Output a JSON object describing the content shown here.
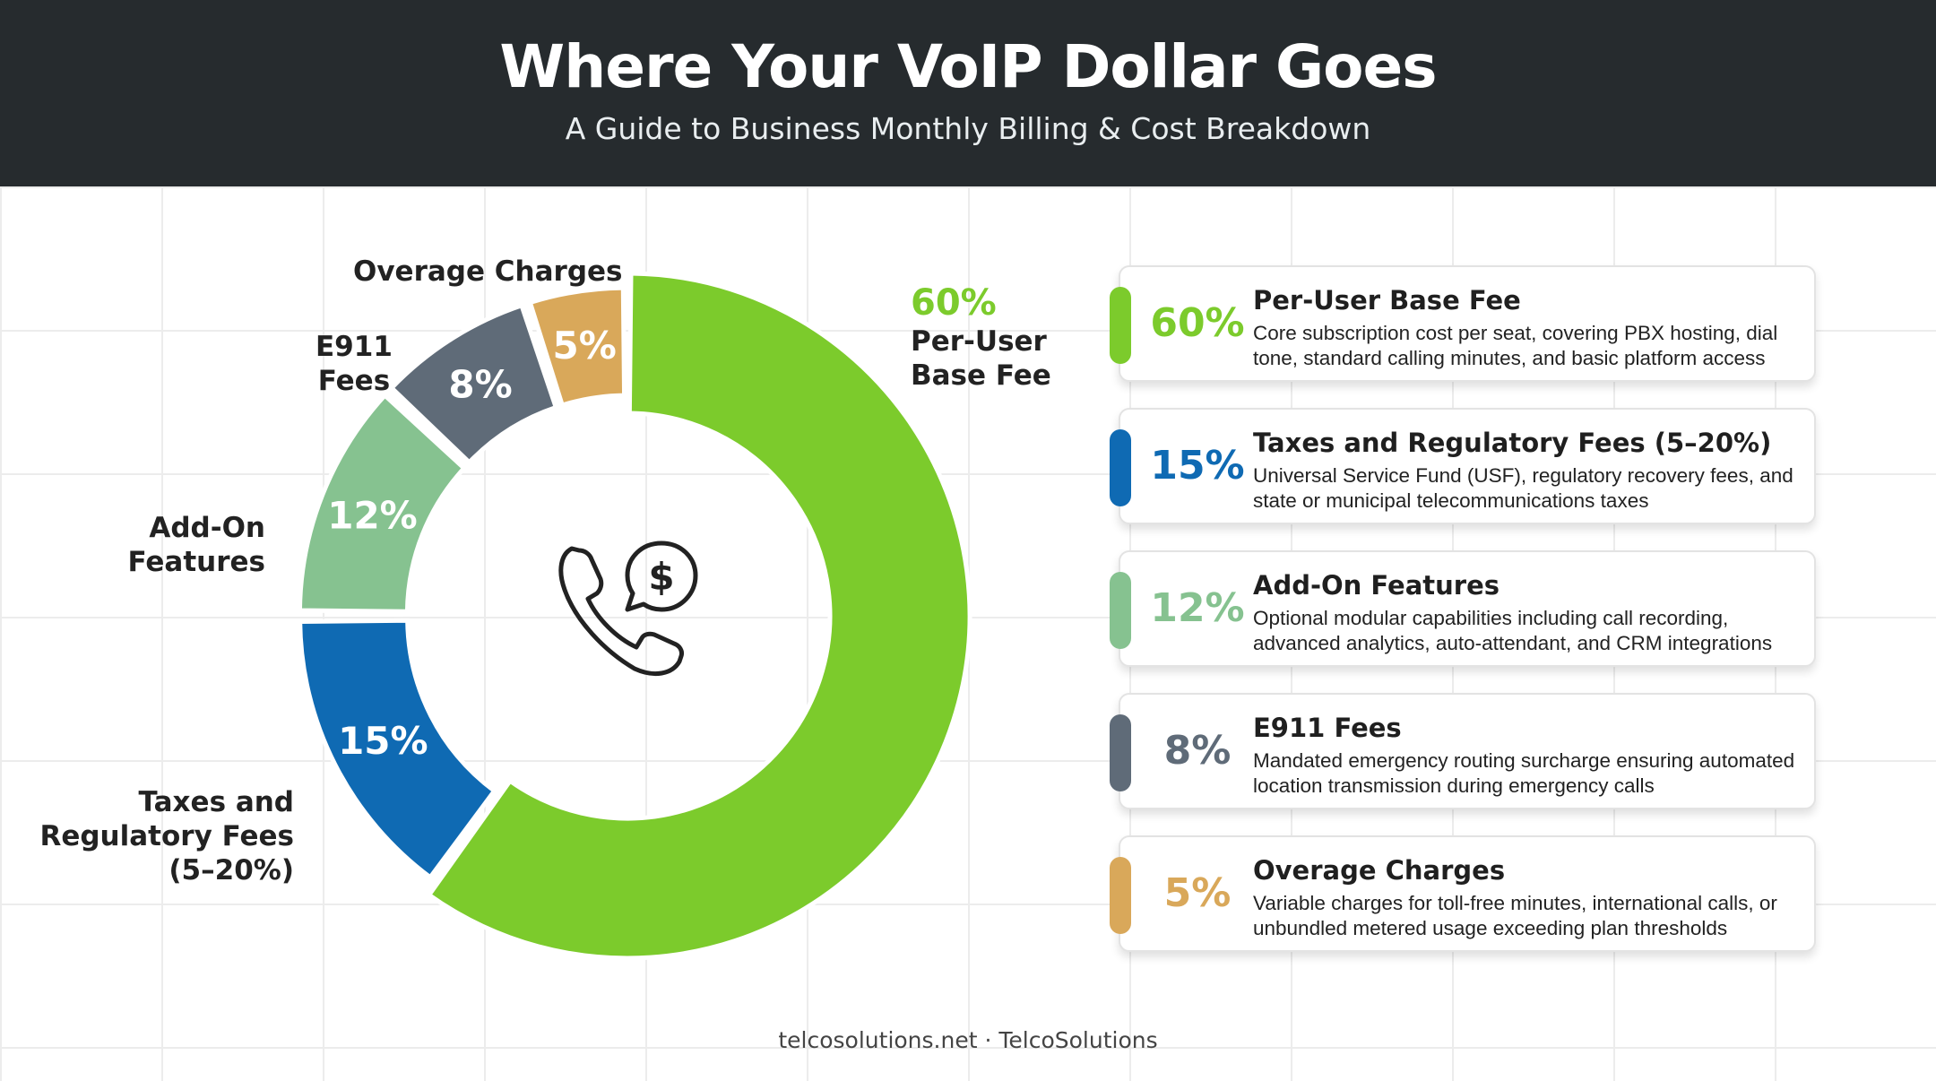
{
  "header": {
    "title": "Where Your VoIP Dollar Goes",
    "subtitle": "A Guide to Business Monthly Billing & Cost Breakdown"
  },
  "chart_data": {
    "type": "pie",
    "variant": "donut",
    "categories": [
      "Per-User Base Fee",
      "Taxes and Regulatory Fees (5–20%)",
      "Add-On Features",
      "E911 Fees",
      "Overage Charges"
    ],
    "values": [
      60,
      15,
      12,
      8,
      5
    ],
    "value_labels": [
      "60%",
      "15%",
      "12%",
      "8%",
      "5%"
    ],
    "colors": [
      "#7ccb2c",
      "#0f6ab3",
      "#86c290",
      "#5f6b78",
      "#d9a85a"
    ],
    "start": "top, clockwise"
  },
  "labels": {
    "overage": "Overage Charges",
    "e911_line1": "E911",
    "e911_line2": "Fees",
    "addon_line1": "Add-On",
    "addon_line2": "Features",
    "taxes_line1": "Taxes and",
    "taxes_line2": "Regulatory Fees",
    "taxes_line3": "(5–20%)",
    "base_pct": "60%",
    "base_line1": "Per-User",
    "base_line2": "Base Fee"
  },
  "center_icon": "phone-dollar-icon",
  "cards": [
    {
      "pct": "60%",
      "title": "Per-User Base Fee",
      "desc": "Core subscription cost per seat, covering PBX hosting, dial tone, standard calling minutes, and basic platform access",
      "color": "#7ccb2c",
      "text_color": "#7ccb2c"
    },
    {
      "pct": "15%",
      "title": "Taxes and Regulatory Fees (5–20%)",
      "desc": "Universal Service Fund (USF), regulatory recovery fees, and state or municipal telecommunications taxes",
      "color": "#0f6ab3",
      "text_color": "#0f6ab3"
    },
    {
      "pct": "12%",
      "title": "Add-On Features",
      "desc": "Optional modular capabilities including call recording, advanced analytics, auto-attendant, and CRM integrations",
      "color": "#86c290",
      "text_color": "#86c290"
    },
    {
      "pct": "8%",
      "title": "E911 Fees",
      "desc": "Mandated emergency routing surcharge ensuring automated location transmission during emergency calls",
      "color": "#5f6b78",
      "text_color": "#5f6b78"
    },
    {
      "pct": "5%",
      "title": "Overage Charges",
      "desc": "Variable charges for toll-free minutes, international calls, or unbundled metered usage exceeding plan thresholds",
      "color": "#d9a85a",
      "text_color": "#d9a85a"
    }
  ],
  "footer": "telcosolutions.net · TelcoSolutions"
}
